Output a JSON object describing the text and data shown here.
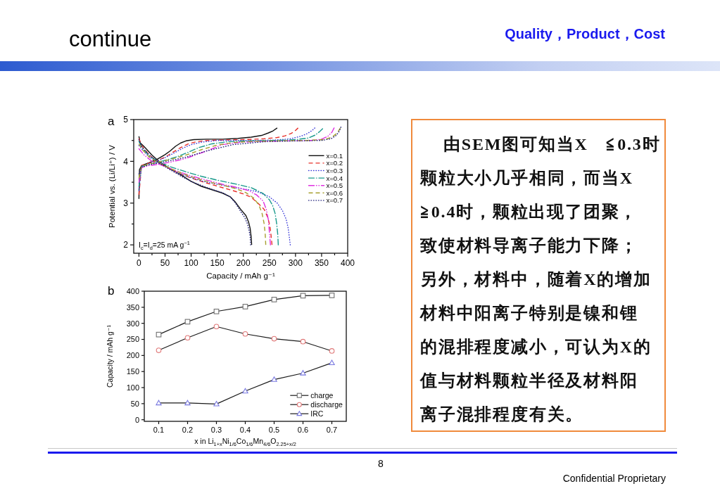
{
  "chart_data": [
    {
      "type": "other",
      "title": "continue",
      "subtitle": "Quality，Product，Cost",
      "annotations": [
        "8",
        "Confidential Proprietary"
      ]
    },
    {
      "type": "line",
      "title": "a",
      "xlabel": "Capacity / mAh g⁻¹",
      "ylabel": "Potential vs. (Li/Li⁺) / V",
      "xlim": [
        -10,
        400
      ],
      "ylim": [
        1.8,
        5
      ],
      "xticks": [
        0,
        {
          "value": 25,
          "label": null
        },
        50,
        {
          "value": 75,
          "label": null
        },
        100,
        {
          "value": 125,
          "label": null
        },
        150,
        {
          "value": 175,
          "label": null
        },
        200,
        {
          "value": 225,
          "label": null
        },
        250,
        {
          "value": 275,
          "label": null
        },
        300,
        {
          "value": 325,
          "label": null
        },
        350,
        {
          "value": 375,
          "label": null
        },
        400
      ],
      "yticks": [
        2,
        {
          "value": 2.5,
          "label": null
        },
        3,
        {
          "value": 3.5,
          "label": null
        },
        4,
        {
          "value": 4.5,
          "label": null
        },
        5
      ],
      "legend": "right",
      "annotations": [
        "I$_{c}$=I$_{d}$=25 mA g$^{−1}$"
      ],
      "series": [
        {
          "name": "x=0.1",
          "color": "#111111",
          "line_style": "solid",
          "x": [
            0,
            1,
            5,
            20,
            35,
            50,
            60,
            70,
            80,
            90,
            105,
            130,
            160,
            190,
            215,
            235,
            248,
            257,
            265
          ],
          "values": [
            3.1,
            3.8,
            3.9,
            3.97,
            4.05,
            4.16,
            4.25,
            4.36,
            4.44,
            4.49,
            4.52,
            4.53,
            4.53,
            4.55,
            4.58,
            4.62,
            4.68,
            4.73,
            4.8
          ]
        },
        {
          "color": "#111111",
          "line_style": "solid",
          "x": [
            0,
            2,
            10,
            25,
            40,
            60,
            80,
            100,
            120,
            140,
            160,
            175,
            185,
            195,
            205,
            210,
            213,
            215,
            216
          ],
          "values": [
            4.6,
            4.45,
            4.35,
            4.15,
            3.98,
            3.82,
            3.68,
            3.52,
            3.4,
            3.32,
            3.24,
            3.15,
            3.02,
            2.85,
            2.7,
            2.55,
            2.4,
            2.2,
            2.0
          ]
        },
        {
          "name": "x=0.2",
          "color": "#e8302a",
          "line_style": "dashed",
          "x": [
            0,
            5,
            20,
            35,
            50,
            65,
            80,
            95,
            110,
            130,
            160,
            200,
            240,
            265,
            280,
            292,
            300,
            305
          ],
          "values": [
            3.2,
            3.9,
            3.96,
            4.02,
            4.1,
            4.22,
            4.33,
            4.42,
            4.47,
            4.5,
            4.51,
            4.52,
            4.54,
            4.57,
            4.61,
            4.67,
            4.74,
            4.8
          ]
        },
        {
          "color": "#e8302a",
          "line_style": "dashed",
          "x": [
            0,
            5,
            20,
            35,
            50,
            70,
            100,
            130,
            160,
            180,
            200,
            215,
            228,
            240,
            247,
            251,
            253,
            255
          ],
          "values": [
            4.55,
            4.38,
            4.15,
            4.0,
            3.88,
            3.75,
            3.6,
            3.48,
            3.37,
            3.3,
            3.22,
            3.14,
            3.0,
            2.85,
            2.65,
            2.45,
            2.25,
            2.0
          ]
        },
        {
          "name": "x=0.3",
          "color": "#3a3ad8",
          "line_style": "dotted",
          "x": [
            0,
            5,
            20,
            40,
            60,
            85,
            100,
            120,
            150,
            180,
            220,
            260,
            290,
            310,
            322,
            332,
            337
          ],
          "values": [
            3.3,
            3.88,
            3.95,
            4.03,
            4.15,
            4.32,
            4.4,
            4.46,
            4.5,
            4.5,
            4.5,
            4.51,
            4.54,
            4.6,
            4.66,
            4.74,
            4.8
          ]
        },
        {
          "color": "#3a3ad8",
          "line_style": "dotted",
          "x": [
            0,
            5,
            20,
            40,
            60,
            90,
            120,
            150,
            180,
            210,
            230,
            250,
            265,
            275,
            282,
            286,
            288,
            290
          ],
          "values": [
            4.38,
            4.3,
            4.1,
            3.95,
            3.8,
            3.65,
            3.53,
            3.45,
            3.38,
            3.32,
            3.26,
            3.15,
            3.0,
            2.82,
            2.62,
            2.4,
            2.2,
            2.0
          ]
        },
        {
          "name": "x=0.4",
          "color": "#1a9a8c",
          "line_style": "dashdot",
          "x": [
            0,
            5,
            20,
            40,
            55,
            75,
            95,
            115,
            140,
            170,
            210,
            260,
            300,
            325,
            338,
            346,
            352
          ],
          "values": [
            3.4,
            3.88,
            3.93,
            3.99,
            4.04,
            4.12,
            4.22,
            4.33,
            4.42,
            4.47,
            4.49,
            4.5,
            4.52,
            4.56,
            4.63,
            4.71,
            4.78
          ]
        },
        {
          "color": "#1a9a8c",
          "line_style": "dashdot",
          "x": [
            0,
            5,
            20,
            40,
            60,
            90,
            120,
            150,
            188,
            215,
            238,
            250,
            256,
            261,
            264,
            266,
            267
          ],
          "values": [
            4.48,
            4.35,
            4.12,
            3.98,
            3.87,
            3.75,
            3.64,
            3.55,
            3.45,
            3.37,
            3.23,
            3.08,
            2.95,
            2.75,
            2.5,
            2.25,
            2.0
          ]
        },
        {
          "name": "x=0.5",
          "color": "#e030e0",
          "line_style": "dashdotdot",
          "x": [
            0,
            5,
            20,
            38,
            60,
            90,
            130,
            160,
            195,
            240,
            290,
            330,
            350,
            362,
            370,
            374
          ],
          "values": [
            3.5,
            3.85,
            3.9,
            3.93,
            3.98,
            4.07,
            4.25,
            4.4,
            4.46,
            4.48,
            4.49,
            4.5,
            4.53,
            4.6,
            4.7,
            4.8
          ]
        },
        {
          "color": "#e030e0",
          "line_style": "dashdotdot",
          "x": [
            0,
            10,
            25,
            45,
            70,
            100,
            130,
            160,
            190,
            210,
            225,
            238,
            244,
            248,
            250,
            252
          ],
          "values": [
            4.3,
            4.15,
            4.0,
            3.9,
            3.78,
            3.65,
            3.55,
            3.45,
            3.37,
            3.3,
            3.2,
            3.05,
            2.85,
            2.6,
            2.3,
            2.0
          ]
        },
        {
          "name": "x=0.6",
          "color": "#a8a030",
          "line_style": "dashed",
          "x": [
            0,
            5,
            20,
            45,
            70,
            95,
            120,
            150,
            180,
            220,
            270,
            320,
            355,
            370,
            380,
            386
          ],
          "values": [
            3.6,
            3.88,
            3.94,
            4.0,
            4.08,
            4.17,
            4.28,
            4.39,
            4.45,
            4.48,
            4.49,
            4.5,
            4.52,
            4.58,
            4.68,
            4.8
          ]
        },
        {
          "color": "#a8a030",
          "line_style": "dashed",
          "x": [
            0,
            5,
            20,
            40,
            65,
            100,
            130,
            160,
            185,
            205,
            220,
            230,
            236,
            240,
            242,
            243
          ],
          "values": [
            4.42,
            4.3,
            4.1,
            3.95,
            3.8,
            3.63,
            3.52,
            3.43,
            3.35,
            3.25,
            3.12,
            2.95,
            2.75,
            2.5,
            2.25,
            2.0
          ]
        },
        {
          "name": "x=0.7",
          "color": "#20207a",
          "line_style": "dotted",
          "x": [
            0,
            5,
            20,
            50,
            90,
            130,
            180,
            240,
            300,
            350,
            368,
            378,
            384,
            387
          ],
          "values": [
            3.7,
            3.86,
            3.92,
            3.99,
            4.1,
            4.25,
            4.4,
            4.47,
            4.49,
            4.5,
            4.54,
            4.62,
            4.72,
            4.82
          ]
        },
        {
          "color": "#20207a",
          "line_style": "dotted",
          "x": [
            0,
            5,
            20,
            40,
            60,
            80,
            100,
            120,
            140,
            160,
            175,
            185,
            195,
            203,
            208,
            211,
            213,
            214
          ],
          "values": [
            4.52,
            4.35,
            4.15,
            3.95,
            3.8,
            3.65,
            3.52,
            3.42,
            3.33,
            3.25,
            3.15,
            3.0,
            2.8,
            2.65,
            2.5,
            2.35,
            2.2,
            2.0
          ]
        }
      ]
    },
    {
      "type": "line",
      "title": "b",
      "xlabel": "x in Li$_{1+x}$Ni$_{1/6}$Co$_{1/6}$Mn$_{4/6}$O$_{2.25+x/2}$",
      "ylabel": "Capacity / mAh g⁻¹",
      "x": [
        0.1,
        0.2,
        0.3,
        0.4,
        0.5,
        0.6,
        0.7
      ],
      "xlim": [
        0.05,
        0.75
      ],
      "ylim": [
        -5,
        400
      ],
      "xticks": [
        0.1,
        0.2,
        0.3,
        0.4,
        0.5,
        0.6,
        0.7
      ],
      "yticks": [
        0,
        50,
        100,
        150,
        200,
        250,
        300,
        350,
        400
      ],
      "legend": "bottom right",
      "series": [
        {
          "name": "charge",
          "color": "#707070",
          "marker": "square",
          "values": [
            265,
            305,
            337,
            352,
            374,
            386,
            387
          ]
        },
        {
          "name": "discharge",
          "color": "#e07878",
          "marker": "circle",
          "values": [
            216,
            255,
            290,
            267,
            252,
            243,
            214
          ]
        },
        {
          "name": "IRC",
          "color": "#7878e0",
          "marker": "triangle",
          "values": [
            52,
            52,
            49,
            89,
            125,
            145,
            177
          ]
        }
      ]
    },
    {
      "type": "other",
      "annotations": [
        "由SEM图可知当X　≦0.3时",
        "颗粒大小几乎相同，而当X",
        "≧0.4时，颗粒出现了团聚，",
        "致使材料导离子能力下降；",
        "另外，材料中，随着X的增加",
        "材料中阳离子特别是镍和锂",
        "的混排程度减小，可认为X的",
        "值与材料颗粒半径及材料阳",
        "离子混排程度有关。"
      ]
    }
  ]
}
